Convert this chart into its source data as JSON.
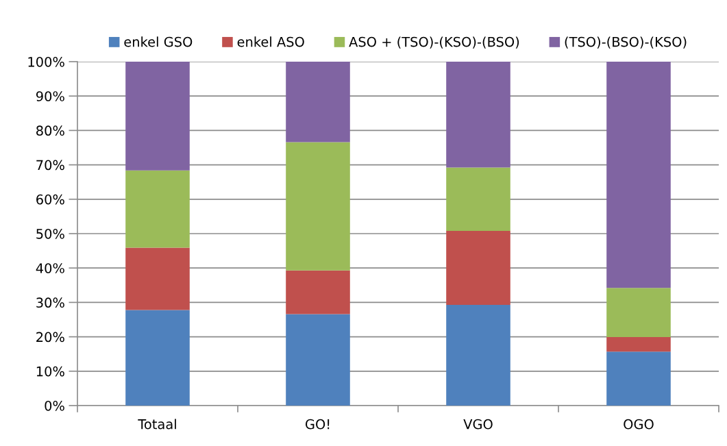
{
  "chart_data": {
    "type": "bar",
    "stacked": true,
    "categories": [
      "Totaal",
      "GO!",
      "VGO",
      "OGO"
    ],
    "series": [
      {
        "name": "enkel GSO",
        "color": "#4f81bd",
        "values": [
          27.8,
          26.6,
          29.3,
          15.7
        ]
      },
      {
        "name": "enkel ASO",
        "color": "#c0504d",
        "values": [
          18.1,
          12.7,
          21.5,
          4.2
        ]
      },
      {
        "name": "ASO + (TSO)-(KSO)-(BSO)",
        "color": "#9bbb59",
        "values": [
          22.5,
          37.3,
          18.4,
          14.3
        ]
      },
      {
        "name": "(TSO)-(BSO)-(KSO)",
        "color": "#8064a2",
        "values": [
          31.6,
          23.4,
          30.8,
          65.8
        ]
      }
    ],
    "ylim": [
      0,
      100
    ],
    "yticks": [
      {
        "value": 0,
        "label": "0%"
      },
      {
        "value": 10,
        "label": "10%"
      },
      {
        "value": 20,
        "label": "20%"
      },
      {
        "value": 30,
        "label": "30%"
      },
      {
        "value": 40,
        "label": "40%"
      },
      {
        "value": 50,
        "label": "50%"
      },
      {
        "value": 60,
        "label": "60%"
      },
      {
        "value": 70,
        "label": "70%"
      },
      {
        "value": 80,
        "label": "80%"
      },
      {
        "value": 90,
        "label": "90%"
      },
      {
        "value": 100,
        "label": "100%"
      }
    ],
    "grid": "y",
    "legend": "top"
  }
}
